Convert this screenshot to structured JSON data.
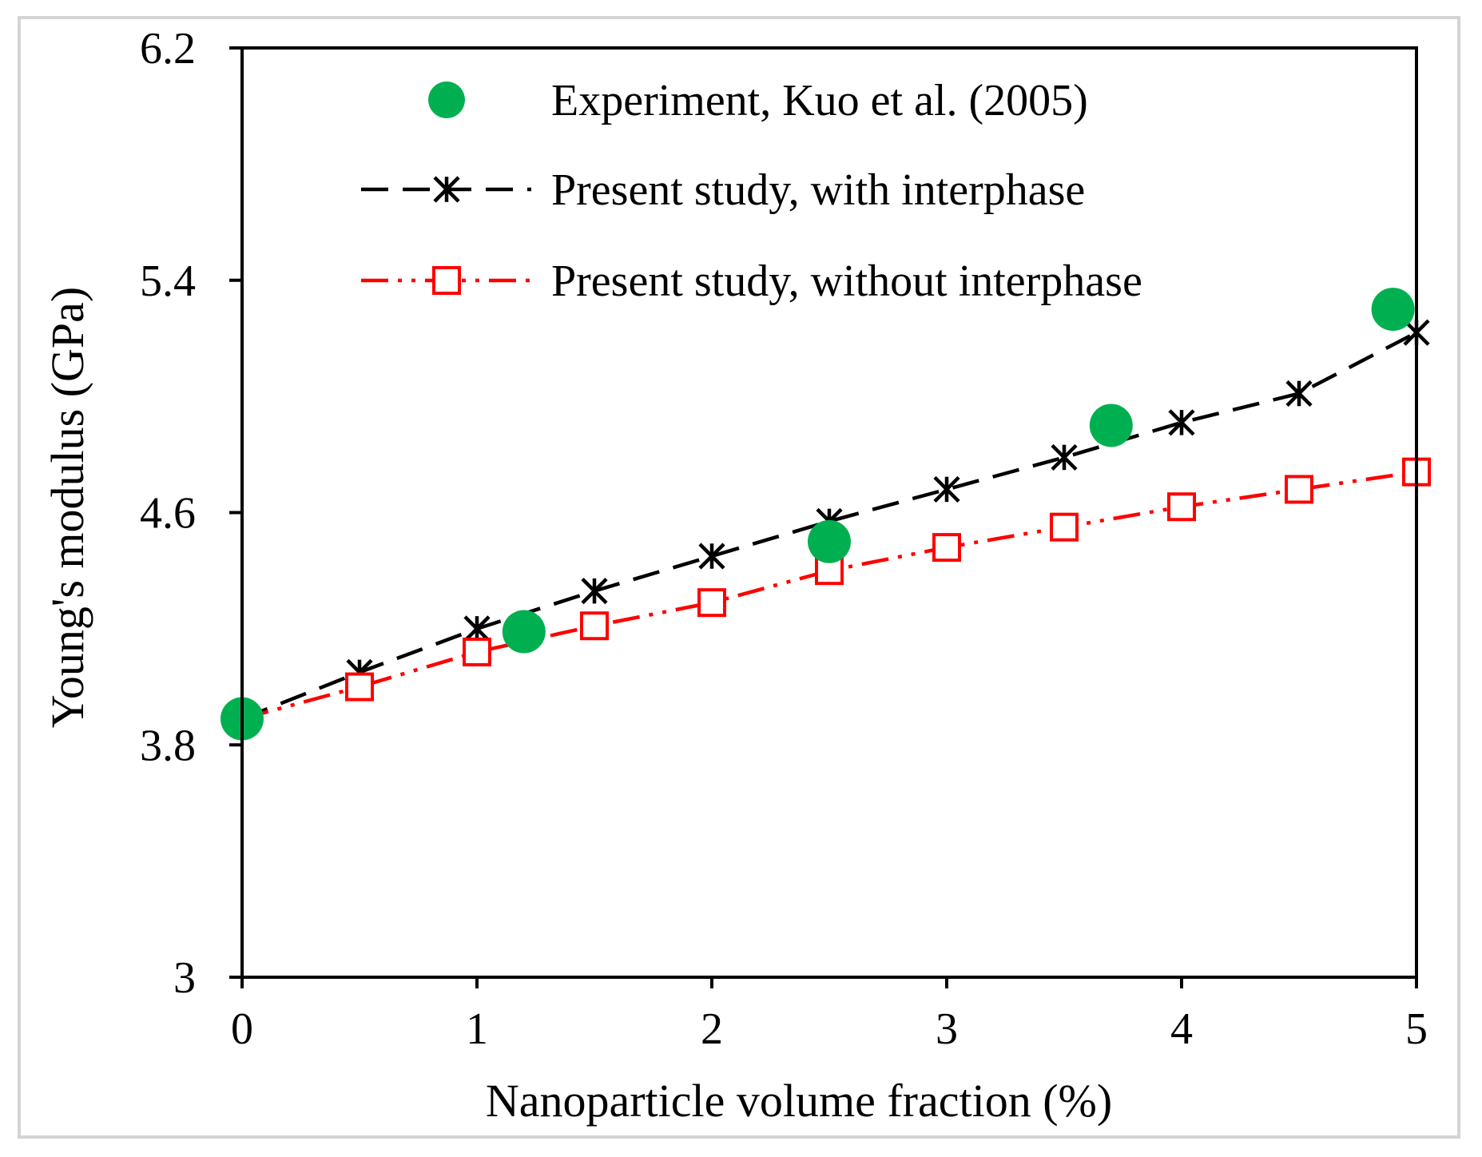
{
  "chart_data": {
    "type": "line",
    "title": "",
    "xlabel": "Nanoparticle volume fraction (%)",
    "ylabel": "Young's modulus (GPa)",
    "xlim": [
      0,
      5
    ],
    "ylim": [
      3,
      6.2
    ],
    "xticks": [
      0,
      1,
      2,
      3,
      4,
      5
    ],
    "xtick_labels": [
      "0",
      "1",
      "2",
      "3",
      "4",
      "5"
    ],
    "yticks": [
      3,
      3.8,
      4.6,
      5.4,
      6.2
    ],
    "ytick_labels": [
      "3",
      "3.8",
      "4.6",
      "5.4",
      "6.2"
    ],
    "grid": false,
    "legend_position": "top",
    "series": [
      {
        "name": "Experiment, Kuo et al. (2005)",
        "style": "markers",
        "marker": "filled-circle",
        "color": "#00b050",
        "x": [
          0,
          1.2,
          2.5,
          3.7,
          4.9
        ],
        "y": [
          3.89,
          4.19,
          4.5,
          4.9,
          5.3
        ]
      },
      {
        "name": "Present study, with interphase",
        "style": "dashed",
        "marker": "asterisk",
        "color": "#000000",
        "x": [
          0,
          0.5,
          1,
          1.5,
          2,
          2.5,
          3,
          3.5,
          4,
          4.5,
          5
        ],
        "y": [
          3.89,
          4.05,
          4.2,
          4.33,
          4.45,
          4.57,
          4.68,
          4.79,
          4.91,
          5.01,
          5.22
        ]
      },
      {
        "name": "Present study, without interphase",
        "style": "dash-dot-dot",
        "marker": "open-square",
        "color": "#ff0000",
        "x": [
          0,
          0.5,
          1,
          1.5,
          2,
          2.5,
          3,
          3.5,
          4,
          4.5,
          5
        ],
        "y": [
          3.89,
          4.0,
          4.12,
          4.21,
          4.29,
          4.4,
          4.48,
          4.55,
          4.62,
          4.68,
          4.74
        ]
      }
    ]
  }
}
